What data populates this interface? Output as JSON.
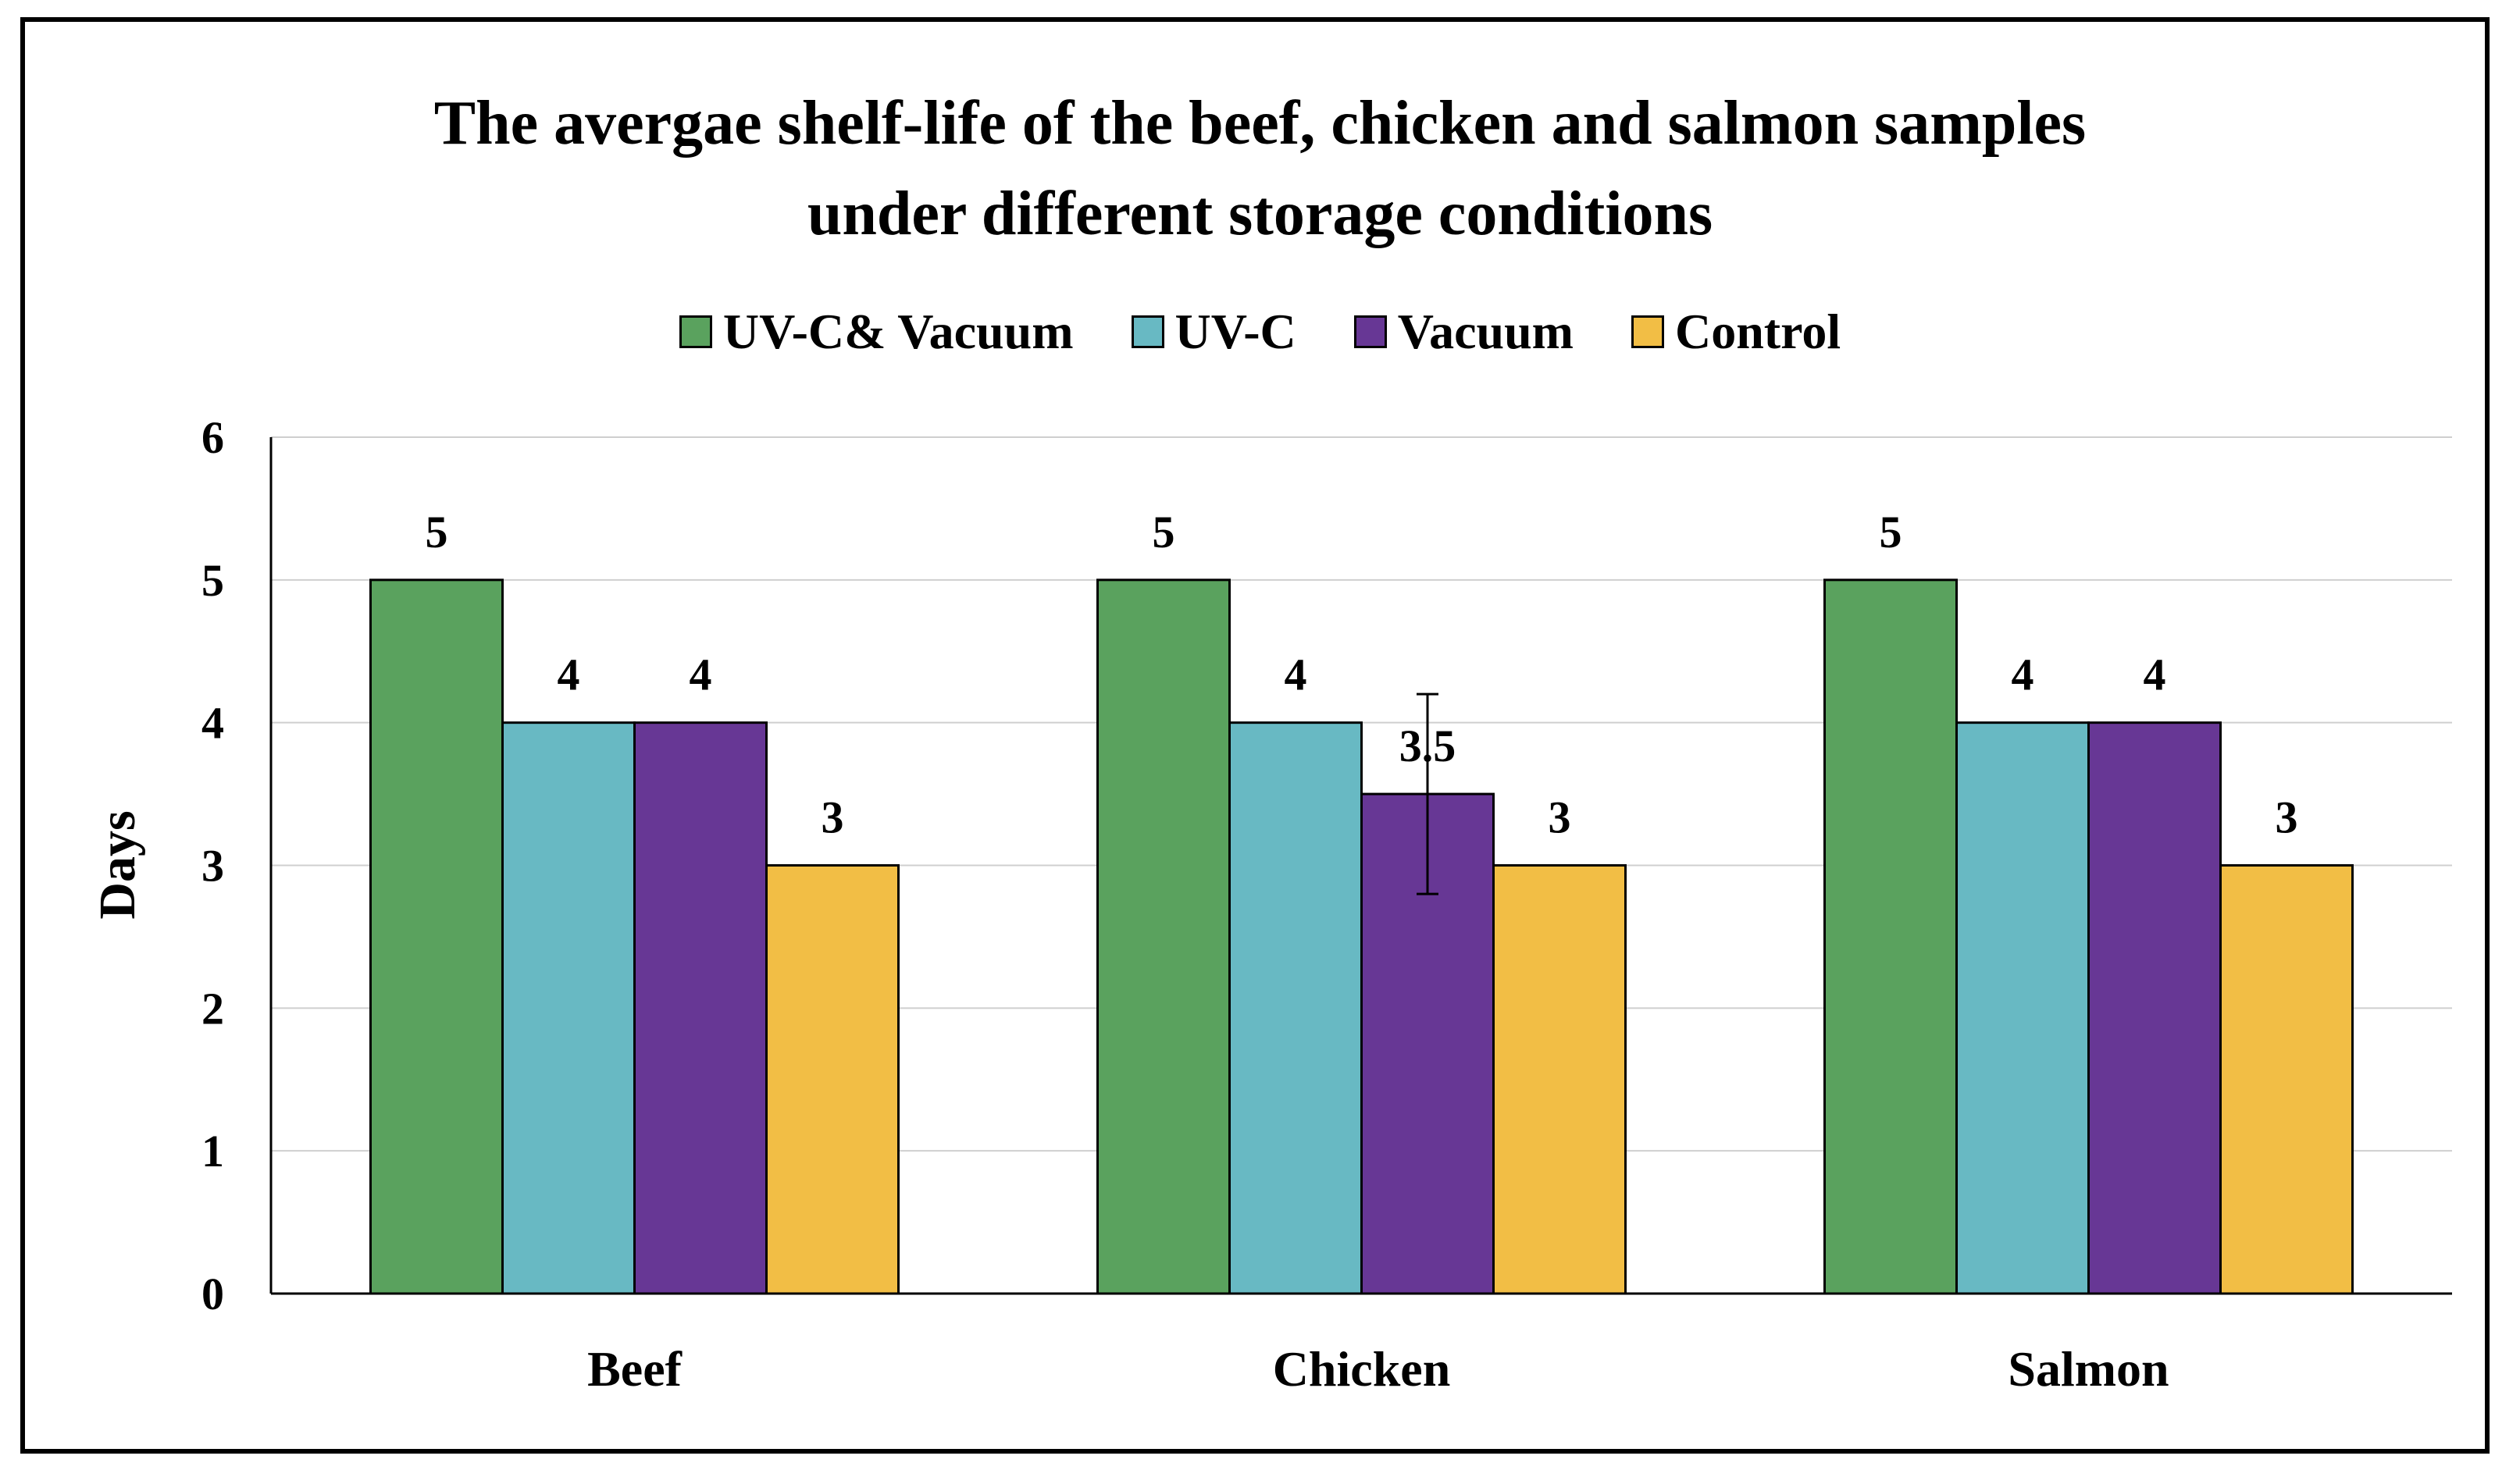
{
  "chart_data": {
    "type": "bar",
    "title_lines": [
      "The avergae shelf-life of the beef, chicken and salmon samples",
      "under different storage conditions"
    ],
    "xlabel": "",
    "ylabel": "Days",
    "ylim": [
      0,
      6
    ],
    "yticks": [
      "0",
      "1",
      "2",
      "3",
      "4",
      "5",
      "6"
    ],
    "categories": [
      "Beef",
      "Chicken",
      "Salmon"
    ],
    "legend_position": "top-center",
    "grid": true,
    "series": [
      {
        "name": "UV-C& Vacuum",
        "color": "#5aa25e",
        "values": [
          5,
          5,
          5
        ],
        "labels": [
          "5",
          "5",
          "5"
        ]
      },
      {
        "name": "UV-C",
        "color": "#68b9c3",
        "values": [
          4,
          4,
          4
        ],
        "labels": [
          "4",
          "4",
          "4"
        ]
      },
      {
        "name": "Vacuum",
        "color": "#673795",
        "values": [
          4,
          3.5,
          4
        ],
        "labels": [
          "4",
          "3.5",
          "4"
        ],
        "error": [
          null,
          0.7,
          null
        ]
      },
      {
        "name": "Control",
        "color": "#f2be45",
        "values": [
          3,
          3,
          3
        ],
        "labels": [
          "3",
          "3",
          "3"
        ]
      }
    ]
  }
}
